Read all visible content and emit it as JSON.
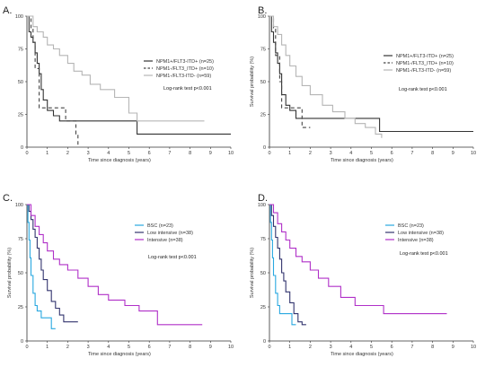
{
  "chart_data": [
    {
      "type": "line",
      "panel": "A.",
      "ylabel": "",
      "xlabel": "Time since diagnosis (years)",
      "xlim": [
        0,
        10
      ],
      "ylim": [
        0,
        100
      ],
      "xticks": [
        0,
        1,
        2,
        3,
        4,
        5,
        6,
        7,
        8,
        9,
        10
      ],
      "yticks": [
        0,
        25,
        50,
        75,
        100
      ],
      "annotation": "Log-rank test p<0.001",
      "legend_position": "middle-right",
      "series": [
        {
          "name": "NPM1+/FLT3-ITD+ (n=25)",
          "color": "#333333",
          "dash": "",
          "x": [
            0,
            0.1,
            0.2,
            0.3,
            0.4,
            0.5,
            0.6,
            0.7,
            0.8,
            1.0,
            1.3,
            1.6,
            5.4,
            10
          ],
          "y": [
            100,
            88,
            84,
            80,
            72,
            64,
            56,
            44,
            36,
            28,
            24,
            20,
            10,
            10
          ]
        },
        {
          "name": "NPM1-/FLT3_ITD+ (n=10)",
          "color": "#444444",
          "dash": "4,3",
          "x": [
            0,
            0.2,
            0.3,
            0.4,
            0.6,
            1.9,
            2.4,
            2.5
          ],
          "y": [
            100,
            90,
            80,
            60,
            30,
            20,
            10,
            0
          ]
        },
        {
          "name": "NPM1-/FLT3-ITD- (n=59)",
          "color": "#b5b5b5",
          "dash": "",
          "x": [
            0,
            0.3,
            0.5,
            0.8,
            1.0,
            1.3,
            1.6,
            2.0,
            2.3,
            2.7,
            3.1,
            3.6,
            4.3,
            5.0,
            5.4,
            8.7
          ],
          "y": [
            100,
            92,
            88,
            84,
            78,
            75,
            70,
            64,
            58,
            55,
            48,
            44,
            38,
            26,
            20,
            20
          ]
        }
      ]
    },
    {
      "type": "line",
      "panel": "B.",
      "ylabel": "Survival probability (%)",
      "xlabel": "Time since diagnosis (years)",
      "xlim": [
        0,
        10
      ],
      "ylim": [
        0,
        100
      ],
      "xticks": [
        0,
        1,
        2,
        3,
        4,
        5,
        6,
        7,
        8,
        9,
        10
      ],
      "yticks": [
        0,
        25,
        50,
        75,
        100
      ],
      "annotation": "Log-rank test p<0.001",
      "legend_position": "top-right",
      "series": [
        {
          "name": "NPM1+/FLT3-ITD+ (n=25)",
          "color": "#333333",
          "dash": "",
          "x": [
            0,
            0.1,
            0.2,
            0.3,
            0.4,
            0.5,
            0.6,
            0.8,
            1.0,
            1.3,
            5.4,
            10
          ],
          "y": [
            100,
            88,
            80,
            72,
            64,
            56,
            40,
            32,
            28,
            22,
            12,
            12
          ]
        },
        {
          "name": "NPM1-/FLT3_ITD+ (n=10)",
          "color": "#444444",
          "dash": "4,3",
          "x": [
            0,
            0.2,
            0.3,
            0.5,
            0.6,
            1.2,
            1.6,
            2.0
          ],
          "y": [
            100,
            90,
            70,
            50,
            30,
            30,
            15,
            15
          ]
        },
        {
          "name": "NPM1-/FLT3-ITD- (n=59)",
          "color": "#b5b5b5",
          "dash": "",
          "x": [
            0,
            0.2,
            0.4,
            0.6,
            0.8,
            1.0,
            1.3,
            1.6,
            2.0,
            2.6,
            3.1,
            3.7,
            4.2,
            4.7,
            5.2,
            5.5
          ],
          "y": [
            100,
            92,
            86,
            78,
            70,
            62,
            54,
            47,
            40,
            32,
            27,
            22,
            18,
            15,
            10,
            7
          ]
        }
      ]
    },
    {
      "type": "line",
      "panel": "C.",
      "ylabel": "Survival probability (%)",
      "xlabel": "Time since diagnosis (years)",
      "xlim": [
        0,
        10
      ],
      "ylim": [
        0,
        100
      ],
      "xticks": [
        0,
        1,
        2,
        3,
        4,
        5,
        6,
        7,
        8,
        9,
        10
      ],
      "yticks": [
        0,
        25,
        50,
        75,
        100
      ],
      "annotation": "Log-rank test p<0.001",
      "legend_position": "top-right",
      "series": [
        {
          "name": "BSC (n=23)",
          "color": "#29a8e0",
          "dash": "",
          "x": [
            0,
            0.05,
            0.1,
            0.15,
            0.2,
            0.3,
            0.4,
            0.5,
            0.7,
            1.0,
            1.2,
            1.4
          ],
          "y": [
            100,
            87,
            74,
            61,
            48,
            35,
            26,
            22,
            17,
            17,
            9,
            9
          ]
        },
        {
          "name": "Low intensive (n=38)",
          "color": "#32346e",
          "dash": "",
          "x": [
            0,
            0.1,
            0.2,
            0.3,
            0.4,
            0.5,
            0.6,
            0.7,
            0.8,
            1.0,
            1.2,
            1.4,
            1.6,
            1.8,
            2.0,
            2.5
          ],
          "y": [
            100,
            95,
            89,
            82,
            76,
            68,
            60,
            52,
            45,
            37,
            29,
            24,
            19,
            14,
            14,
            14
          ]
        },
        {
          "name": "Intensive (n=38)",
          "color": "#b030c8",
          "dash": "",
          "x": [
            0,
            0.2,
            0.4,
            0.6,
            0.8,
            1.0,
            1.3,
            1.6,
            2.0,
            2.5,
            3.0,
            3.5,
            4.0,
            4.8,
            5.5,
            6.4,
            8.6
          ],
          "y": [
            100,
            92,
            84,
            78,
            72,
            66,
            60,
            56,
            52,
            46,
            40,
            34,
            30,
            26,
            22,
            12,
            12
          ]
        }
      ]
    },
    {
      "type": "line",
      "panel": "D.",
      "ylabel": "Survival probability (%)",
      "xlabel": "Time since diagnosis (years)",
      "xlim": [
        0,
        10
      ],
      "ylim": [
        0,
        100
      ],
      "xticks": [
        0,
        1,
        2,
        3,
        4,
        5,
        6,
        7,
        8,
        9,
        10
      ],
      "yticks": [
        0,
        25,
        50,
        75,
        100
      ],
      "annotation": "Log-rank test p<0.001",
      "legend_position": "top-right",
      "series": [
        {
          "name": "BSC (n=23)",
          "color": "#29a8e0",
          "dash": "",
          "x": [
            0,
            0.05,
            0.1,
            0.15,
            0.2,
            0.3,
            0.4,
            0.5,
            0.8,
            1.1,
            1.3
          ],
          "y": [
            100,
            87,
            74,
            61,
            48,
            35,
            26,
            20,
            20,
            12,
            12
          ]
        },
        {
          "name": "Low intensive (n=38)",
          "color": "#32346e",
          "dash": "",
          "x": [
            0,
            0.1,
            0.2,
            0.3,
            0.4,
            0.5,
            0.6,
            0.7,
            0.8,
            1.0,
            1.2,
            1.4,
            1.6,
            1.8
          ],
          "y": [
            100,
            92,
            84,
            76,
            68,
            60,
            50,
            44,
            36,
            28,
            20,
            14,
            12,
            12
          ]
        },
        {
          "name": "Intensive (n=38)",
          "color": "#b030c8",
          "dash": "",
          "x": [
            0,
            0.2,
            0.4,
            0.6,
            0.8,
            1.0,
            1.3,
            1.6,
            2.0,
            2.4,
            2.9,
            3.5,
            4.2,
            5.6,
            8.7
          ],
          "y": [
            100,
            94,
            86,
            80,
            74,
            68,
            62,
            58,
            52,
            46,
            40,
            32,
            26,
            20,
            20
          ]
        }
      ]
    }
  ]
}
